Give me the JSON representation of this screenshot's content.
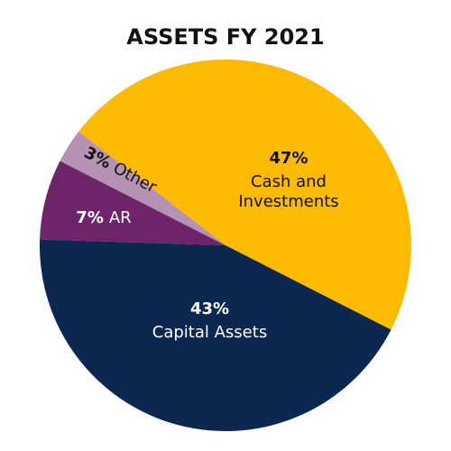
{
  "chart_data": {
    "type": "pie",
    "title": "ASSETS FY 2021",
    "categories": [
      "Cash and Investments",
      "Other",
      "AR",
      "Capital Assets"
    ],
    "values": [
      47,
      3,
      7,
      43
    ],
    "value_labels": [
      "47%",
      "3%",
      "7%",
      "43%"
    ],
    "colors": [
      "#fdbb00",
      "#b592b3",
      "#6e2468",
      "#0c2750"
    ],
    "label_colors": [
      "#111111",
      "#111111",
      "#ffffff",
      "#ffffff"
    ]
  }
}
